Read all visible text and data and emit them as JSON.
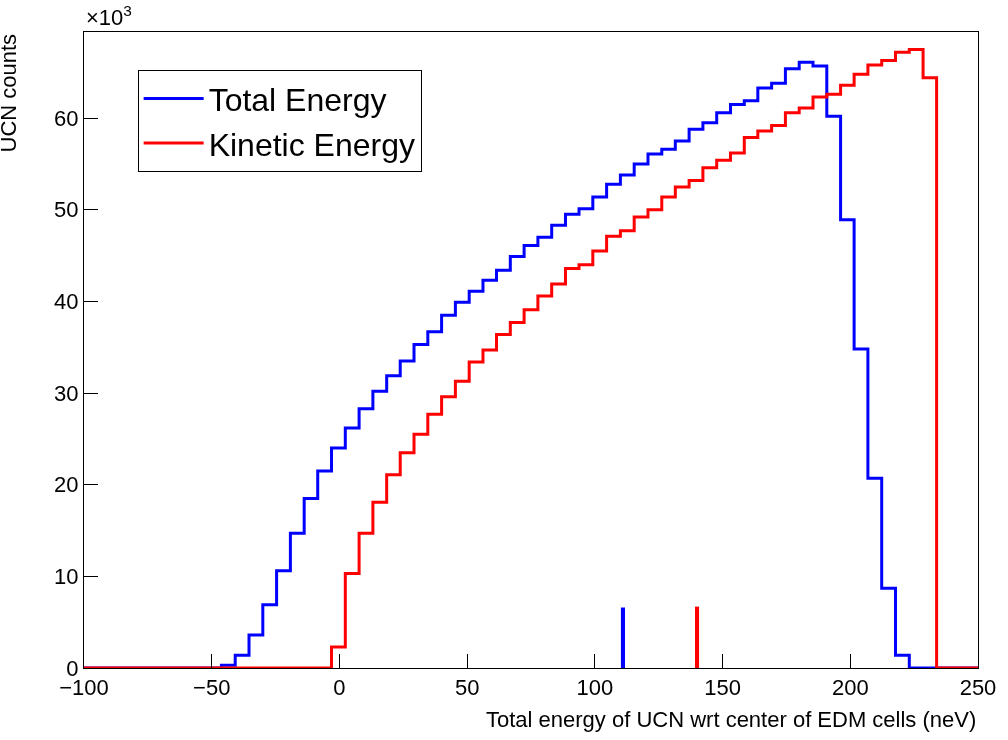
{
  "chart_data": {
    "type": "histogram",
    "xlabel": "Total energy of UCN wrt center of EDM cells (neV)",
    "ylabel": "UCN counts",
    "annotations": [
      "×10$^{3}$"
    ],
    "bins": [
      -100,
      -94.6,
      -89.2,
      -83.8,
      -78.5,
      -73.1,
      -67.7,
      -62.3,
      -56.9,
      -51.5,
      -46.2,
      -40.8,
      -35.4,
      -30.0,
      -24.6,
      -19.2,
      -13.8,
      -8.5,
      -3.1,
      2.3,
      7.7,
      13.1,
      18.5,
      23.8,
      29.2,
      34.6,
      40.0,
      45.4,
      50.8,
      56.2,
      61.5,
      66.9,
      72.3,
      77.7,
      83.1,
      88.5,
      93.8,
      99.2,
      104.6,
      110.0,
      115.4,
      120.8,
      126.2,
      131.5,
      136.9,
      142.3,
      147.7,
      153.1,
      158.5,
      163.8,
      169.2,
      174.6,
      180.0,
      185.4,
      190.8,
      196.2,
      201.5,
      206.9,
      212.3,
      217.7,
      223.1,
      228.5,
      233.8,
      239.2,
      244.6,
      250
    ],
    "series": [
      {
        "name": "Total Energy",
        "color": "#0000ff",
        "values": [
          0,
          0,
          0,
          0,
          0,
          0,
          0,
          0,
          0,
          0,
          0.3,
          1.4,
          3.6,
          6.9,
          10.6,
          14.7,
          18.5,
          21.5,
          24.0,
          26.2,
          28.3,
          30.2,
          31.9,
          33.5,
          35.3,
          36.7,
          38.5,
          39.9,
          41.1,
          42.3,
          43.4,
          44.9,
          46.1,
          47.0,
          48.3,
          49.5,
          50.1,
          51.4,
          52.8,
          53.8,
          55.0,
          56.1,
          56.6,
          57.5,
          58.8,
          59.5,
          60.6,
          61.5,
          61.9,
          63.3,
          63.8,
          65.4,
          66.1,
          65.7,
          60.2,
          48.9,
          34.8,
          20.7,
          8.7,
          1.4,
          0,
          0,
          0,
          0,
          0
        ]
      },
      {
        "name": "Kinetic Energy",
        "color": "#ff0000",
        "values": [
          0,
          0,
          0,
          0,
          0,
          0,
          0,
          0,
          0,
          0,
          0,
          0,
          0,
          0,
          0,
          0,
          0,
          0,
          2.3,
          10.3,
          14.7,
          18.1,
          21.1,
          23.5,
          25.5,
          27.7,
          29.6,
          31.3,
          33.4,
          34.7,
          36.4,
          37.7,
          39.1,
          40.6,
          41.9,
          43.6,
          44.0,
          45.5,
          47.1,
          47.7,
          49.2,
          50.0,
          51.4,
          52.5,
          53.2,
          54.6,
          55.4,
          56.2,
          57.9,
          58.6,
          59.2,
          60.6,
          61.1,
          62.3,
          62.6,
          63.6,
          64.8,
          65.8,
          66.3,
          67.2,
          67.5,
          64.4,
          0,
          0,
          0
        ]
      },
      {
        "type": "bar",
        "color": "#0000ff",
        "x": [
          111
        ],
        "values": [
          6.6
        ]
      },
      {
        "type": "bar",
        "color": "#ff0000",
        "x": [
          140
        ],
        "values": [
          6.7
        ]
      }
    ],
    "xlim": [
      -100,
      250
    ],
    "xticks": [
      {
        "value": -100,
        "label": "−100"
      },
      {
        "value": -50,
        "label": "−50"
      },
      0,
      50,
      100,
      150,
      200,
      250
    ],
    "ylim": [
      0,
      69.4
    ],
    "yticks": [
      0,
      10,
      20,
      30,
      40,
      50,
      60
    ],
    "legend": "top left"
  }
}
